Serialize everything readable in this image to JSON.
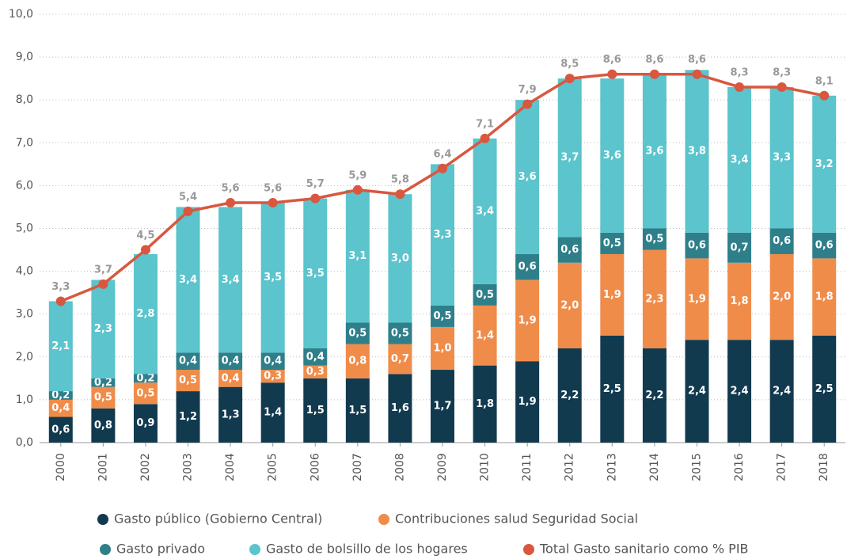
{
  "chart_data": {
    "type": "bar",
    "stacked": true,
    "grid": true,
    "categories": [
      "2000",
      "2001",
      "2002",
      "2003",
      "2004",
      "2005",
      "2006",
      "2007",
      "2008",
      "2009",
      "2010",
      "2011",
      "2012",
      "2013",
      "2014",
      "2015",
      "2016",
      "2017",
      "2018"
    ],
    "ylim": [
      0,
      10
    ],
    "yticks": [
      {
        "value": 0,
        "label": "0,0"
      },
      {
        "value": 1,
        "label": "1,0"
      },
      {
        "value": 2,
        "label": "2,0"
      },
      {
        "value": 3,
        "label": "3,0"
      },
      {
        "value": 4,
        "label": "4,0"
      },
      {
        "value": 5,
        "label": "5,0"
      },
      {
        "value": 6,
        "label": "6,0"
      },
      {
        "value": 7,
        "label": "7,0"
      },
      {
        "value": 8,
        "label": "8,0"
      },
      {
        "value": 9,
        "label": "9,0"
      },
      {
        "value": 10,
        "label": "10,0"
      }
    ],
    "series": [
      {
        "name": "Gasto público (Gobierno Central)",
        "color": "#123a4f",
        "values": [
          0.6,
          0.8,
          0.9,
          1.2,
          1.3,
          1.4,
          1.5,
          1.5,
          1.6,
          1.7,
          1.8,
          1.9,
          2.2,
          2.5,
          2.2,
          2.4,
          2.4,
          2.4,
          2.5
        ],
        "value_labels": [
          "0,6",
          "0,8",
          "0,9",
          "1,2",
          "1,3",
          "1,4",
          "1,5",
          "1,5",
          "1,6",
          "1,7",
          "1,8",
          "1,9",
          "2,2",
          "2,5",
          "2,2",
          "2,4",
          "2,4",
          "2,4",
          "2,5"
        ]
      },
      {
        "name": "Contribuciones salud Seguridad Social",
        "color": "#f08c4a",
        "values": [
          0.4,
          0.5,
          0.5,
          0.5,
          0.4,
          0.3,
          0.3,
          0.8,
          0.7,
          1.0,
          1.4,
          1.9,
          2.0,
          1.9,
          2.3,
          1.9,
          1.8,
          2.0,
          1.8
        ],
        "value_labels": [
          "0,4",
          "0,5",
          "0,5",
          "0,5",
          "0,4",
          "0,3",
          "0,3",
          "0,8",
          "0,7",
          "1,0",
          "1,4",
          "1,9",
          "2,0",
          "1,9",
          "2,3",
          "1,9",
          "1,8",
          "2,0",
          "1,8"
        ]
      },
      {
        "name": "Gasto privado",
        "color": "#2e7f8a",
        "values": [
          0.2,
          0.2,
          0.2,
          0.4,
          0.4,
          0.4,
          0.4,
          0.5,
          0.5,
          0.5,
          0.5,
          0.6,
          0.6,
          0.5,
          0.5,
          0.6,
          0.7,
          0.6,
          0.6
        ],
        "value_labels": [
          "0,2",
          "0,2",
          "0,2",
          "0,4",
          "0,4",
          "0,4",
          "0,4",
          "0,5",
          "0,5",
          "0,5",
          "0,5",
          "0,6",
          "0,6",
          "0,5",
          "0,5",
          "0,6",
          "0,7",
          "0,6",
          "0,6"
        ]
      },
      {
        "name": "Gasto de bolsillo de los hogares",
        "color": "#5bc4cc",
        "values": [
          2.1,
          2.3,
          2.8,
          3.4,
          3.4,
          3.5,
          3.5,
          3.1,
          3.0,
          3.3,
          3.4,
          3.6,
          3.7,
          3.6,
          3.6,
          3.8,
          3.4,
          3.3,
          3.2
        ],
        "value_labels": [
          "2,1",
          "2,3",
          "2,8",
          "3,4",
          "3,4",
          "3,5",
          "3,5",
          "3,1",
          "3,0",
          "3,3",
          "3,4",
          "3,6",
          "3,7",
          "3,6",
          "3,6",
          "3,8",
          "3,4",
          "3,3",
          "3,2"
        ]
      },
      {
        "name": "Total Gasto sanitario como % PIB",
        "color": "#d9573f",
        "type": "line",
        "values": [
          3.3,
          3.7,
          4.5,
          5.4,
          5.6,
          5.6,
          5.7,
          5.9,
          5.8,
          6.4,
          7.1,
          7.9,
          8.5,
          8.6,
          8.6,
          8.6,
          8.3,
          8.3,
          8.1
        ],
        "value_labels": [
          "3,3",
          "3,7",
          "4,5",
          "5,4",
          "5,6",
          "5,6",
          "5,7",
          "5,9",
          "5,8",
          "6,4",
          "7,1",
          "7,9",
          "8,5",
          "8,6",
          "8,6",
          "8,6",
          "8,3",
          "8,3",
          "8,1"
        ]
      }
    ]
  }
}
